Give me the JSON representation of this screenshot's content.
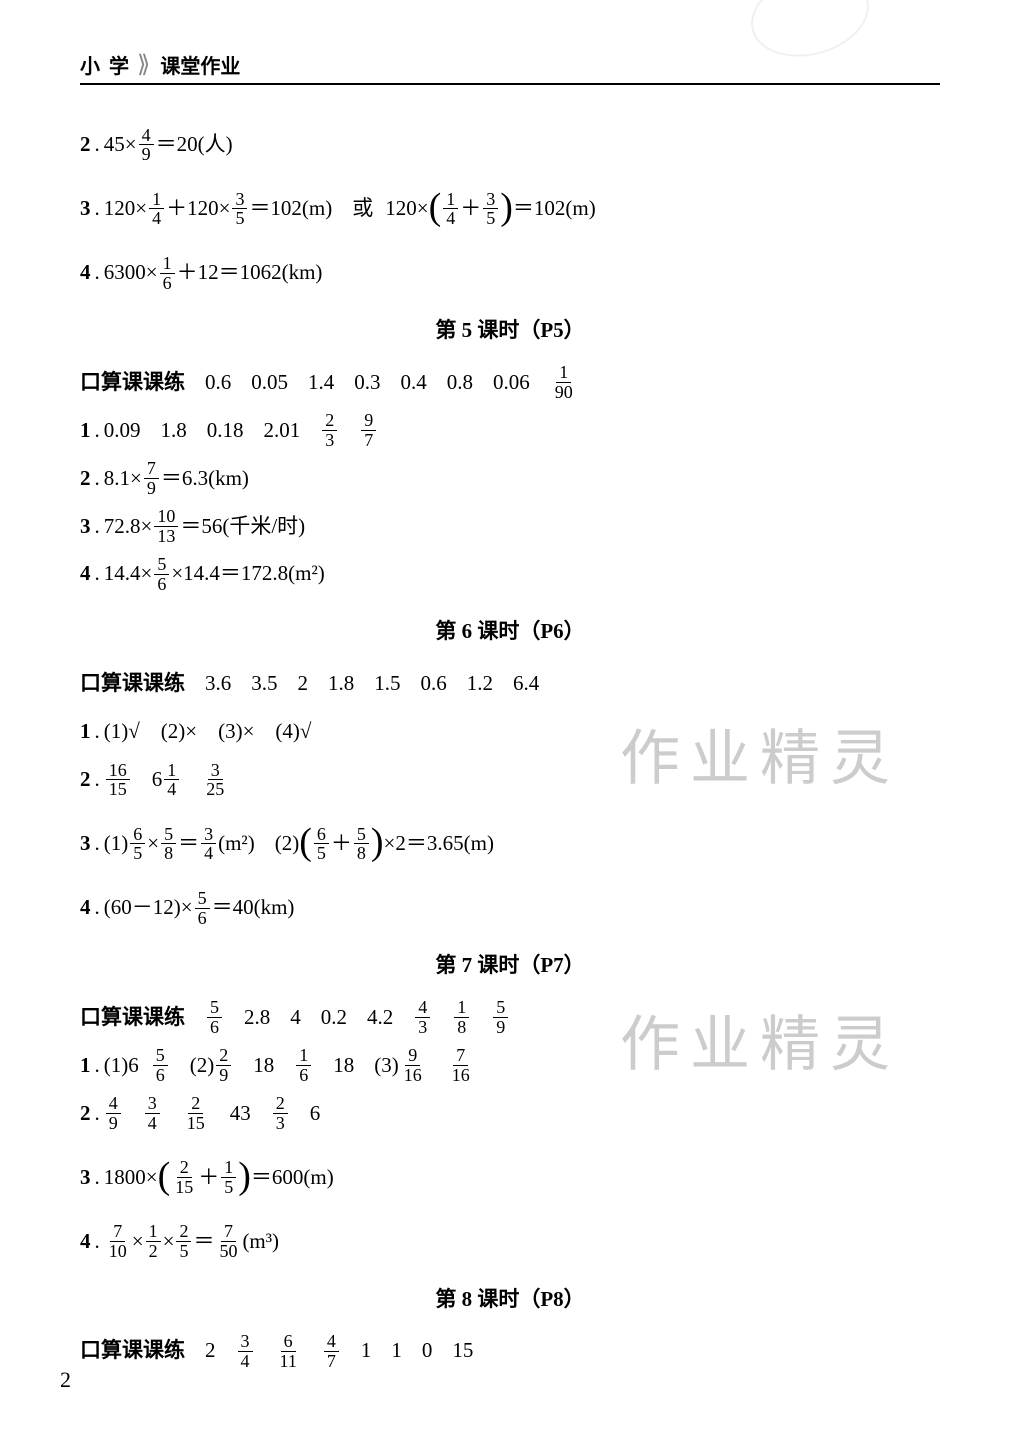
{
  "header": {
    "left": "小 学",
    "right": "课堂作业"
  },
  "page_number": "2",
  "watermark_text": "作业精灵",
  "pre": {
    "l2": {
      "n": "2",
      "a": "45×",
      "f1n": "4",
      "f1d": "9",
      "b": "＝20(人)"
    },
    "l3": {
      "n": "3",
      "a": "120×",
      "f1n": "1",
      "f1d": "4",
      "b": "＋120×",
      "f2n": "3",
      "f2d": "5",
      "c": "＝102(m)",
      "or": "或",
      "d": "120×",
      "f3n": "1",
      "f3d": "4",
      "e": "＋",
      "f4n": "3",
      "f4d": "5",
      "f": "＝102(m)"
    },
    "l4": {
      "n": "4",
      "a": "6300×",
      "f1n": "1",
      "f1d": "6",
      "b": "＋12＝1062(km)"
    }
  },
  "s5": {
    "title": "第 5 课时（P5）",
    "kousuan_label": "口算课课练",
    "kousuan": [
      "0.6",
      "0.05",
      "1.4",
      "0.3",
      "0.4",
      "0.8",
      "0.06"
    ],
    "kousuan_frac": {
      "n": "1",
      "d": "90"
    },
    "l1": {
      "n": "1",
      "vals": [
        "0.09",
        "1.8",
        "0.18",
        "2.01"
      ],
      "f1n": "2",
      "f1d": "3",
      "f2n": "9",
      "f2d": "7"
    },
    "l2": {
      "n": "2",
      "a": "8.1×",
      "f1n": "7",
      "f1d": "9",
      "b": "＝6.3(km)"
    },
    "l3": {
      "n": "3",
      "a": "72.8×",
      "f1n": "10",
      "f1d": "13",
      "b": "＝56(千米/时)"
    },
    "l4": {
      "n": "4",
      "a": "14.4×",
      "f1n": "5",
      "f1d": "6",
      "b": "×14.4＝172.8(m²)"
    }
  },
  "s6": {
    "title": "第 6 课时（P6）",
    "kousuan_label": "口算课课练",
    "kousuan": [
      "3.6",
      "3.5",
      "2",
      "1.8",
      "1.5",
      "0.6",
      "1.2",
      "6.4"
    ],
    "l1": {
      "n": "1",
      "text": "(1)√　(2)×　(3)×　(4)√"
    },
    "l2": {
      "n": "2",
      "f1n": "16",
      "f1d": "15",
      "a": "6",
      "f2n": "1",
      "f2d": "4",
      "f3n": "3",
      "f3d": "25"
    },
    "l3": {
      "n": "3",
      "p1": "(1)",
      "f1n": "6",
      "f1d": "5",
      "a": "×",
      "f2n": "5",
      "f2d": "8",
      "b": "＝",
      "f3n": "3",
      "f3d": "4",
      "c": "(m²)",
      "p2": "(2)",
      "f4n": "6",
      "f4d": "5",
      "d": "＋",
      "f5n": "5",
      "f5d": "8",
      "e": "×2＝3.65(m)"
    },
    "l4": {
      "n": "4",
      "a": "(60－12)×",
      "f1n": "5",
      "f1d": "6",
      "b": "＝40(km)"
    }
  },
  "s7": {
    "title": "第 7 课时（P7）",
    "kousuan_label": "口算课课练",
    "k_f1n": "5",
    "k_f1d": "6",
    "kousuan": [
      "2.8",
      "4",
      "0.2",
      "4.2"
    ],
    "k_f2n": "4",
    "k_f2d": "3",
    "k_f3n": "1",
    "k_f3d": "8",
    "k_f4n": "5",
    "k_f4d": "9",
    "l1": {
      "n": "1",
      "p1": "(1)6",
      "f1n": "5",
      "f1d": "6",
      "p2": "(2)",
      "f2n": "2",
      "f2d": "9",
      "a": "18",
      "f3n": "1",
      "f3d": "6",
      "b": "18",
      "p3": "(3)",
      "f4n": "9",
      "f4d": "16",
      "f5n": "7",
      "f5d": "16"
    },
    "l2": {
      "n": "2",
      "f1n": "4",
      "f1d": "9",
      "f2n": "3",
      "f2d": "4",
      "f3n": "2",
      "f3d": "15",
      "a": "43",
      "f4n": "2",
      "f4d": "3",
      "b": "6"
    },
    "l3": {
      "n": "3",
      "a": "1800×",
      "f1n": "2",
      "f1d": "15",
      "b": "＋",
      "f2n": "1",
      "f2d": "5",
      "c": "＝600(m)"
    },
    "l4": {
      "n": "4",
      "f1n": "7",
      "f1d": "10",
      "a": "×",
      "f2n": "1",
      "f2d": "2",
      "b": "×",
      "f3n": "2",
      "f3d": "5",
      "c": "＝",
      "f4n": "7",
      "f4d": "50",
      "d": "(m³)"
    }
  },
  "s8": {
    "title": "第 8 课时（P8）",
    "kousuan_label": "口算课课练",
    "a": "2",
    "f1n": "3",
    "f1d": "4",
    "f2n": "6",
    "f2d": "11",
    "f3n": "4",
    "f3d": "7",
    "tail": [
      "1",
      "1",
      "0",
      "15"
    ]
  }
}
